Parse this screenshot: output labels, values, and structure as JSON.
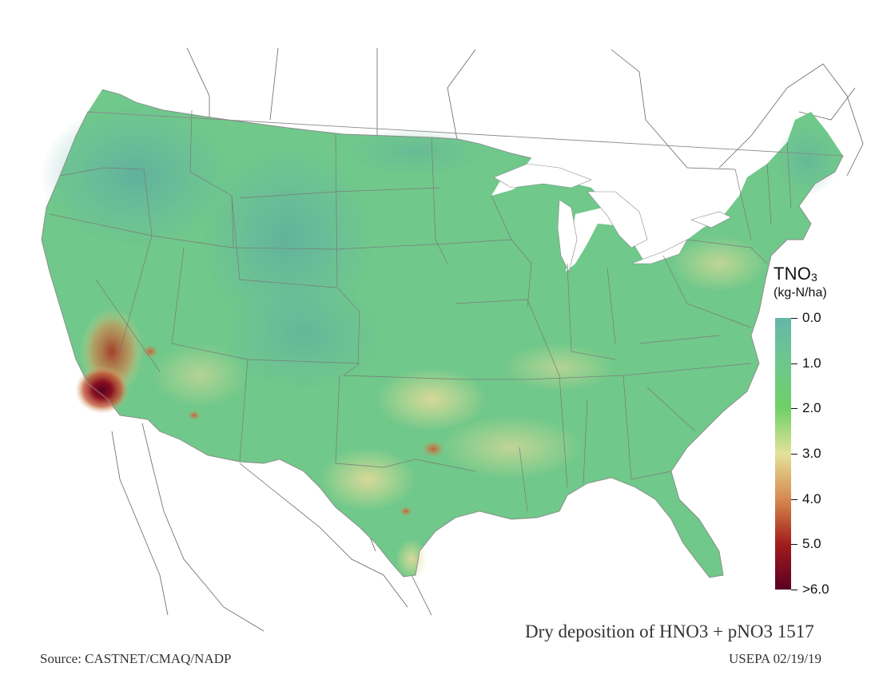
{
  "legend": {
    "title_main": "TNO",
    "title_sub": "3",
    "unit": "(kg-N/ha)",
    "labels": [
      "0.0",
      "1.0",
      "2.0",
      "3.0",
      "4.0",
      "5.0",
      ">6.0"
    ],
    "colors": [
      "#66b5a9",
      "#6cc78d",
      "#6fd067",
      "#e3e29a",
      "#d68a4f",
      "#a21c1c",
      "#5a0024"
    ]
  },
  "caption": "Dry deposition of HNO3 + pNO3 1517",
  "source": "Source: CASTNET/CMAQ/NADP",
  "stamp": "USEPA 02/19/19",
  "map": {
    "region": "contiguous-united-states",
    "hotspots": [
      "southern-california",
      "central-valley",
      "north-texas",
      "southeast-texas"
    ]
  }
}
